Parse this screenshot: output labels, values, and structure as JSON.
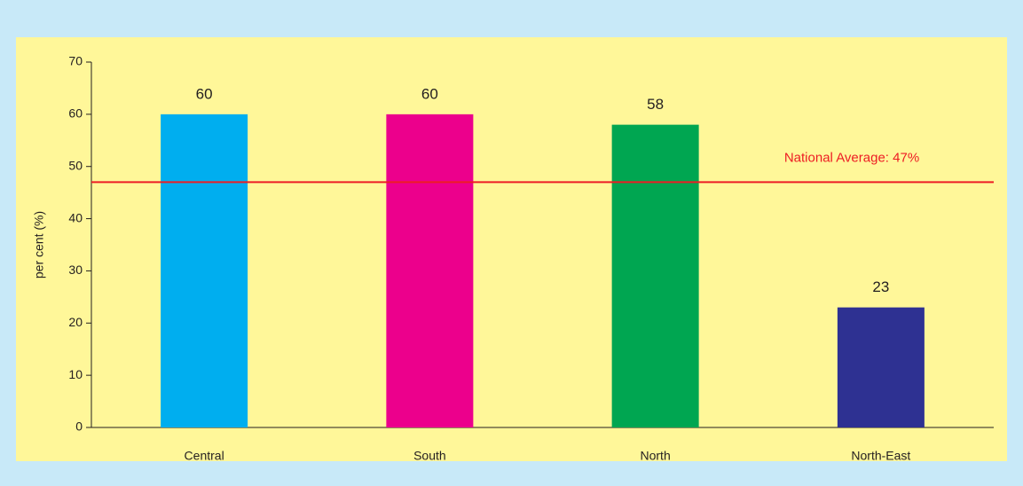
{
  "chart_data": {
    "type": "bar",
    "y_label": "per cent (%)",
    "categories": [
      "Central",
      "South",
      "North",
      "North-East"
    ],
    "values": [
      60,
      60,
      58,
      23
    ],
    "colors": [
      "#00aeef",
      "#ec008c",
      "#00a651",
      "#2e3192"
    ],
    "ylim": [
      0,
      70
    ],
    "yticks": [
      0,
      10,
      20,
      30,
      40,
      50,
      60,
      70
    ],
    "grid": false,
    "reference_line": {
      "value": 47,
      "label": "National Average: 47%",
      "color": "#ed1c24"
    }
  }
}
